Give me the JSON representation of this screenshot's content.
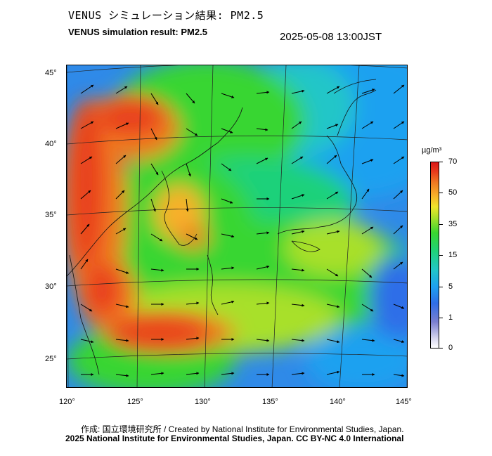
{
  "header": {
    "title_jp": "VENUS シミュレーション結果: PM2.5",
    "title_en": "VENUS simulation result: PM2.5",
    "timestamp": "2025-05-08 13:00JST"
  },
  "map": {
    "lon_ticks": [
      "120°",
      "125°",
      "130°",
      "135°",
      "140°",
      "145°"
    ],
    "lat_ticks": [
      "45°",
      "40°",
      "35°",
      "30°",
      "25°"
    ],
    "wind_field": "arrows",
    "colors": {
      "low": "#2f6ee8",
      "mid": "#39d630",
      "high": "#d81818",
      "coast": "#111111"
    }
  },
  "colorbar": {
    "unit": "µg/m³",
    "labels": [
      "70",
      "50",
      "35",
      "15",
      "5",
      "1",
      "0"
    ]
  },
  "footer": {
    "credit_jp_en": "作成: 国立環境研究所 / Created by National Institute for Environmental Studies, Japan.",
    "copyright": "2025 National Institute for Environmental Studies, Japan. CC BY-NC 4.0 International"
  }
}
